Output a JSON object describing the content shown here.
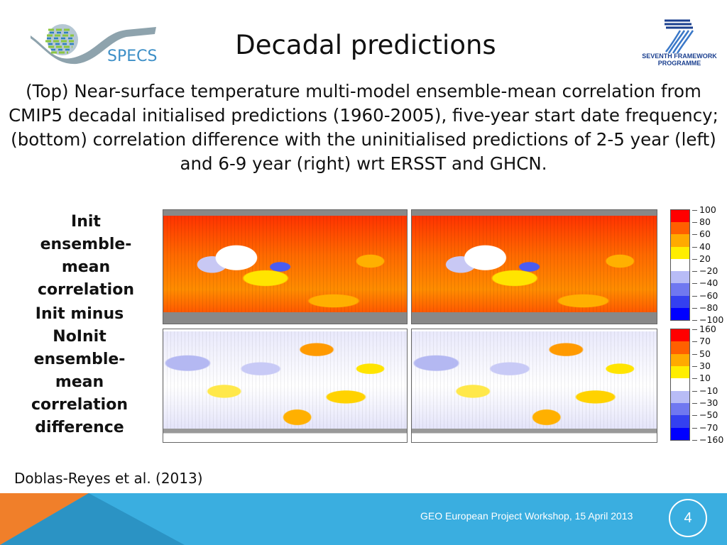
{
  "slide": {
    "title": "Decadal predictions",
    "description": "(Top) Near-surface temperature multi-model ensemble-mean correlation from CMIP5 decadal initialised predictions (1960-2005), five-year start date frequency; (bottom) correlation difference with the uninitialised predictions of 2-5 year (left) and 6-9 year (right) wrt ERSST and GHCN.",
    "label_top": "Init ensemble-mean correlation",
    "label_bottom": "Init minus NoInit ensemble-mean correlation difference",
    "citation": "Doblas-Reyes et al. (2013)",
    "logos": {
      "left": "SPECS",
      "right": "SEVENTH FRAMEWORK PROGRAMME"
    }
  },
  "colorbars": {
    "top": {
      "ticks": [
        "100",
        "80",
        "60",
        "40",
        "20",
        "−20",
        "−40",
        "−60",
        "−80",
        "−100"
      ],
      "colors": [
        "#ff0000",
        "#ff6000",
        "#ffaa00",
        "#ffee00",
        "#ffffff",
        "#b8bcf6",
        "#7078f0",
        "#3440f0",
        "#0000ff"
      ]
    },
    "bottom": {
      "ticks": [
        "160",
        "70",
        "50",
        "30",
        "10",
        "−10",
        "−30",
        "−50",
        "−70",
        "−160"
      ],
      "colors": [
        "#ff0000",
        "#ff6000",
        "#ffaa00",
        "#ffee00",
        "#ffffff",
        "#b8bcf6",
        "#7078f0",
        "#3440f0",
        "#0000ff"
      ]
    }
  },
  "footer": {
    "text": "GEO European Project Workshop, 15 April 2013",
    "page_number": "4",
    "bar_color": "#3aaee0",
    "accent_color": "#f07f2a"
  }
}
